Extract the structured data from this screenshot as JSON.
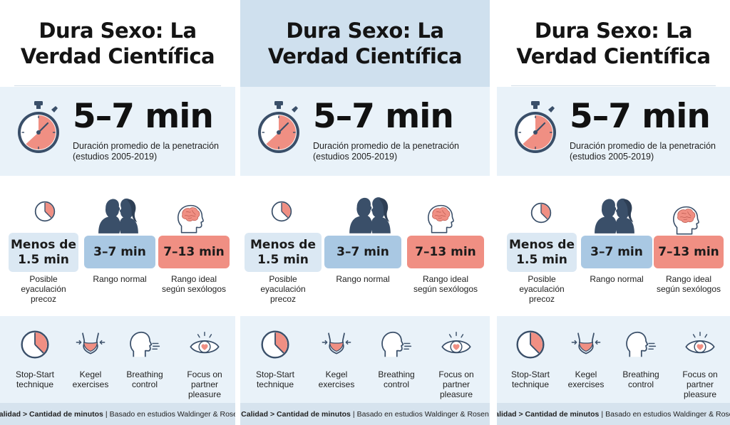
{
  "title": {
    "line1": "Dura Sexo: La",
    "line2": "Verdad Científica"
  },
  "stat": {
    "value": "5–7 min",
    "line1": "Duración promedio de la penetración",
    "line2": "(estudios 2005-2019)"
  },
  "ranges": [
    {
      "label_line1": "Menos de",
      "label_line2": "1.5 min",
      "desc_lines": [
        "Posible",
        "eyaculación",
        "precoz"
      ]
    },
    {
      "label": "3–7 min",
      "desc_lines": [
        "Rango normal"
      ]
    },
    {
      "label": "7–13 min",
      "desc_lines": [
        "Rango ideal",
        "según sexólogos"
      ]
    }
  ],
  "techniques": [
    {
      "icon": "stopwatch-icon",
      "lines": [
        "Stop-Start",
        "technique"
      ]
    },
    {
      "icon": "pelvis-icon",
      "lines": [
        "Kegel",
        "exercises"
      ]
    },
    {
      "icon": "breathing-head-icon",
      "lines": [
        "Breathing",
        "control"
      ]
    },
    {
      "icon": "eye-heart-icon",
      "lines": [
        "Focus on",
        "partner",
        "pleasure"
      ]
    }
  ],
  "footer": {
    "bold": "Calidad > Cantidad de minutos",
    "sep": "|",
    "rest": "Basado en estudios Waldinger & Rosen"
  },
  "colors": {
    "coral": "#f08f83",
    "blue": "#a9c8e3",
    "light_blue": "#dbe8f3",
    "bg_blue": "#e9f2f9",
    "navy": "#3a4f69"
  }
}
